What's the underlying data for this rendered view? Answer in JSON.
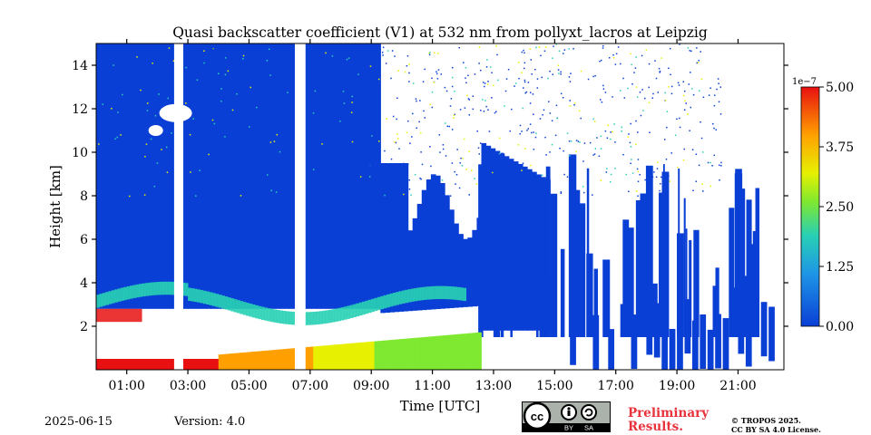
{
  "chart_data": {
    "type": "heatmap",
    "title": "Quasi backscatter coefficient (V1) at 532 nm from pollyxt_lacros at Leipzig",
    "xlabel": "Time [UTC]",
    "ylabel": "Height [km]",
    "x_range_hours": [
      0.0,
      22.5
    ],
    "y_range_km": [
      0.0,
      15.0
    ],
    "x_ticks": [
      {
        "v": 1,
        "label": "01:00"
      },
      {
        "v": 3,
        "label": "03:00"
      },
      {
        "v": 5,
        "label": "05:00"
      },
      {
        "v": 7,
        "label": "07:00"
      },
      {
        "v": 9,
        "label": "09:00"
      },
      {
        "v": 11,
        "label": "11:00"
      },
      {
        "v": 13,
        "label": "13:00"
      },
      {
        "v": 15,
        "label": "15:00"
      },
      {
        "v": 17,
        "label": "17:00"
      },
      {
        "v": 19,
        "label": "19:00"
      },
      {
        "v": 21,
        "label": "21:00"
      }
    ],
    "y_ticks": [
      {
        "v": 2,
        "label": "2"
      },
      {
        "v": 4,
        "label": "4"
      },
      {
        "v": 6,
        "label": "6"
      },
      {
        "v": 8,
        "label": "8"
      },
      {
        "v": 10,
        "label": "10"
      },
      {
        "v": 12,
        "label": "12"
      },
      {
        "v": 14,
        "label": "14"
      }
    ],
    "colorbar": {
      "range": [
        0.0,
        5.0
      ],
      "multiplier_label": "1e−7",
      "ticks": [
        {
          "v": 0.0,
          "label": "0.00"
        },
        {
          "v": 1.25,
          "label": "1.25"
        },
        {
          "v": 2.5,
          "label": "2.50"
        },
        {
          "v": 3.75,
          "label": "3.75"
        },
        {
          "v": 5.0,
          "label": "5.00"
        }
      ],
      "colormap": "jet"
    },
    "data_gaps_hours": [
      [
        2.55,
        2.85
      ],
      [
        6.5,
        6.85
      ]
    ],
    "regions": {
      "boundary_layer_top_km": 0.8,
      "aerosol_layer_km": [
        2.5,
        4.5
      ],
      "cloud_at_12km_hours": [
        1.9,
        3.5
      ]
    }
  },
  "footer": {
    "date": "2025-06-15",
    "version": "Version: 4.0",
    "preliminary_line1": "Preliminary",
    "preliminary_line2": "Results.",
    "copyright_line1": "© TROPOS 2025.",
    "copyright_line2": "CC BY SA 4.0 License.",
    "cc_label": "cc",
    "by_label": "BY",
    "sa_label": "SA"
  },
  "colors": {
    "background": "#0a3fd6",
    "accent_red": "#e8323c"
  }
}
